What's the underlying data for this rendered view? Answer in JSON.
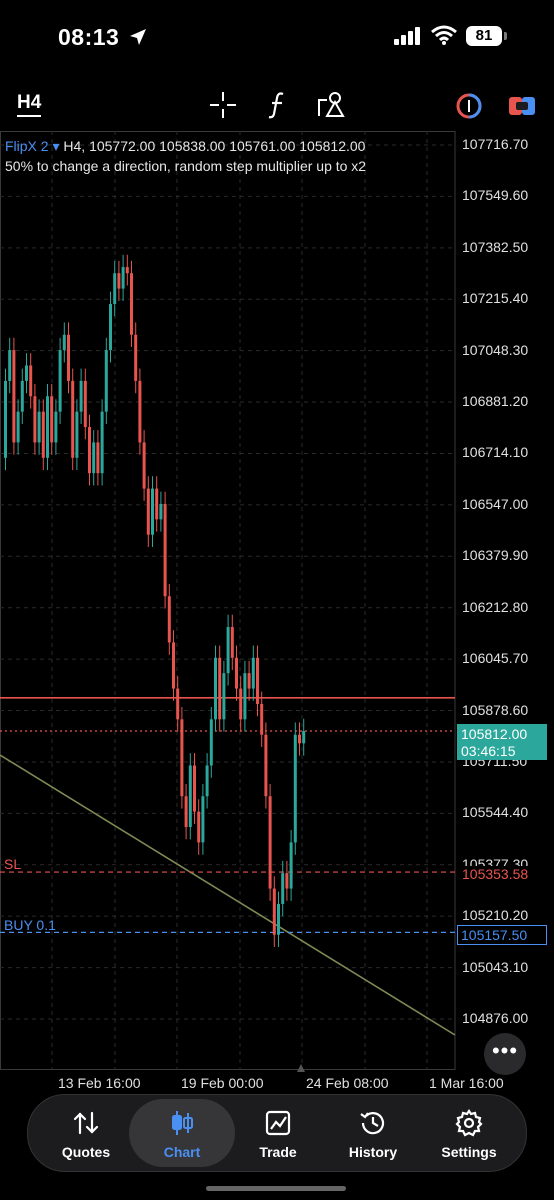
{
  "status_bar": {
    "time": "08:13",
    "battery": "81"
  },
  "toolbar": {
    "timeframe": "H4"
  },
  "chart": {
    "symbol": "FlipX 2",
    "symbol_caret": "▾",
    "ohlc": "H4, 105772.00 105838.00 105761.00 105812.00",
    "description": "50% to change a direction, random step multiplier up to x2",
    "price_labels": [
      "107716.70",
      "107549.60",
      "107382.50",
      "107215.40",
      "107048.30",
      "106881.20",
      "106714.10",
      "106547.00",
      "106379.90",
      "106212.80",
      "106045.70",
      "105878.60",
      "105711.50",
      "105544.40",
      "105377.30",
      "105210.20",
      "105043.10",
      "104876.00"
    ],
    "date_labels": [
      "13 Feb 16:00",
      "19 Feb 00:00",
      "24 Feb 08:00",
      "1 Mar 16:00"
    ],
    "current_price": "105812.00",
    "countdown": "03:46:15",
    "sl_price": "105353.58",
    "sl_label": "SL",
    "buy_price": "105157.50",
    "buy_label": "BUY 0.1",
    "more": "•••"
  },
  "chart_data": {
    "type": "candlestick",
    "y_range": [
      104876.0,
      107716.7
    ],
    "candles": [
      {
        "o": 106700,
        "c": 106950
      },
      {
        "o": 106950,
        "c": 107050
      },
      {
        "o": 107050,
        "c": 106750
      },
      {
        "o": 106750,
        "c": 106850
      },
      {
        "o": 106850,
        "c": 106950
      },
      {
        "o": 106950,
        "c": 107000
      },
      {
        "o": 107000,
        "c": 106900
      },
      {
        "o": 106900,
        "c": 106750
      },
      {
        "o": 106750,
        "c": 106850
      },
      {
        "o": 106850,
        "c": 106700
      },
      {
        "o": 106700,
        "c": 106900
      },
      {
        "o": 106900,
        "c": 106750
      },
      {
        "o": 106750,
        "c": 106850
      },
      {
        "o": 106850,
        "c": 107050
      },
      {
        "o": 107050,
        "c": 107100
      },
      {
        "o": 107100,
        "c": 106950
      },
      {
        "o": 106950,
        "c": 106700
      },
      {
        "o": 106700,
        "c": 106850
      },
      {
        "o": 106850,
        "c": 106950
      },
      {
        "o": 106950,
        "c": 106800
      },
      {
        "o": 106800,
        "c": 106650
      },
      {
        "o": 106650,
        "c": 106750
      },
      {
        "o": 106750,
        "c": 106650
      },
      {
        "o": 106650,
        "c": 106850
      },
      {
        "o": 106850,
        "c": 107050
      },
      {
        "o": 107050,
        "c": 107200
      },
      {
        "o": 107200,
        "c": 107300
      },
      {
        "o": 107300,
        "c": 107250
      },
      {
        "o": 107250,
        "c": 107320
      },
      {
        "o": 107320,
        "c": 107300
      },
      {
        "o": 107300,
        "c": 107100
      },
      {
        "o": 107100,
        "c": 106950
      },
      {
        "o": 106950,
        "c": 106750
      },
      {
        "o": 106750,
        "c": 106600
      },
      {
        "o": 106600,
        "c": 106450
      },
      {
        "o": 106450,
        "c": 106600
      },
      {
        "o": 106600,
        "c": 106500
      },
      {
        "o": 106500,
        "c": 106550
      },
      {
        "o": 106550,
        "c": 106250
      },
      {
        "o": 106250,
        "c": 106100
      },
      {
        "o": 106100,
        "c": 105950
      },
      {
        "o": 105950,
        "c": 105850
      },
      {
        "o": 105850,
        "c": 105600
      },
      {
        "o": 105600,
        "c": 105500
      },
      {
        "o": 105500,
        "c": 105700
      },
      {
        "o": 105700,
        "c": 105550
      },
      {
        "o": 105550,
        "c": 105450
      },
      {
        "o": 105450,
        "c": 105600
      },
      {
        "o": 105600,
        "c": 105700
      },
      {
        "o": 105700,
        "c": 105850
      },
      {
        "o": 105850,
        "c": 106050
      },
      {
        "o": 106050,
        "c": 105850
      },
      {
        "o": 105850,
        "c": 106000
      },
      {
        "o": 106000,
        "c": 106150
      },
      {
        "o": 106150,
        "c": 106050
      },
      {
        "o": 106050,
        "c": 105950
      },
      {
        "o": 105950,
        "c": 105850
      },
      {
        "o": 105850,
        "c": 106000
      },
      {
        "o": 106000,
        "c": 105950
      },
      {
        "o": 105950,
        "c": 106050
      },
      {
        "o": 106050,
        "c": 105900
      },
      {
        "o": 105900,
        "c": 105800
      },
      {
        "o": 105800,
        "c": 105600
      },
      {
        "o": 105600,
        "c": 105300
      },
      {
        "o": 105300,
        "c": 105150
      },
      {
        "o": 105150,
        "c": 105250
      },
      {
        "o": 105250,
        "c": 105350
      },
      {
        "o": 105350,
        "c": 105300
      },
      {
        "o": 105300,
        "c": 105450
      },
      {
        "o": 105450,
        "c": 105800
      },
      {
        "o": 105800,
        "c": 105772
      },
      {
        "o": 105772,
        "c": 105812
      }
    ],
    "horizontal_lines": [
      {
        "price": 105920,
        "color": "#e8554f",
        "style": "solid"
      },
      {
        "price": 105812.0,
        "color": "#e8554f",
        "style": "dotted"
      },
      {
        "price": 105353.58,
        "color": "#e8554f",
        "style": "dashed"
      },
      {
        "price": 105157.5,
        "color": "#4a8ff2",
        "style": "dashed"
      }
    ],
    "colors": {
      "up": "#2ba89b",
      "down": "#e8554f",
      "trendline": "#7d8a55"
    }
  },
  "tabbar": {
    "items": [
      {
        "label": "Quotes",
        "icon": "quotes-icon"
      },
      {
        "label": "Chart",
        "icon": "chart-icon",
        "active": true
      },
      {
        "label": "Trade",
        "icon": "trade-icon"
      },
      {
        "label": "History",
        "icon": "history-icon"
      },
      {
        "label": "Settings",
        "icon": "settings-icon"
      }
    ]
  }
}
